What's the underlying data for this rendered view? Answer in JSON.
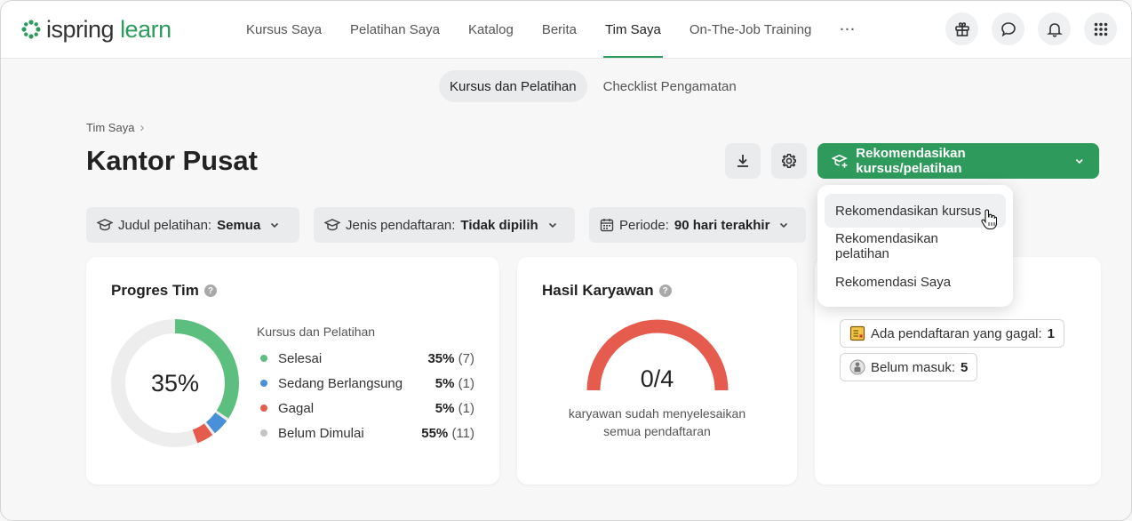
{
  "app": {
    "logo_brand": "ispring",
    "logo_product": "learn"
  },
  "nav": {
    "items": [
      {
        "label": "Kursus Saya"
      },
      {
        "label": "Pelatihan Saya"
      },
      {
        "label": "Katalog"
      },
      {
        "label": "Berita"
      },
      {
        "label": "Tim Saya",
        "active": true
      },
      {
        "label": "On-The-Job Training"
      }
    ],
    "more": "···"
  },
  "subtabs": [
    {
      "label": "Kursus dan Pelatihan",
      "active": true
    },
    {
      "label": "Checklist Pengamatan"
    }
  ],
  "breadcrumb": {
    "item": "Tim Saya",
    "separator": "›"
  },
  "page": {
    "title": "Kantor Pusat"
  },
  "actions": {
    "recommend_label": "Rekomendasikan kursus/pelatihan"
  },
  "filters": [
    {
      "label": "Judul pelatihan:",
      "value": "Semua"
    },
    {
      "label": "Jenis pendaftaran:",
      "value": "Tidak dipilih"
    },
    {
      "label": "Periode:",
      "value": "90 hari terakhir"
    }
  ],
  "progress_card": {
    "title": "Progres Tim",
    "help": "?",
    "center_value": "35%",
    "legend_title": "Kursus dan Pelatihan",
    "items": [
      {
        "label": "Selesai",
        "percent": "35%",
        "count": "(7)",
        "color": "#5cbf7f",
        "fraction": 0.35
      },
      {
        "label": "Sedang Berlangsung",
        "percent": "5%",
        "count": "(1)",
        "color": "#4a90d9",
        "fraction": 0.05
      },
      {
        "label": "Gagal",
        "percent": "5%",
        "count": "(1)",
        "color": "#e55b4d",
        "fraction": 0.05
      },
      {
        "label": "Belum Dimulai",
        "percent": "55%",
        "count": "(11)",
        "color": "#c4c4c4",
        "fraction": 0.55
      }
    ]
  },
  "results_card": {
    "title": "Hasil Karyawan",
    "help": "?",
    "value": "0/4",
    "caption_line1": "karyawan sudah menyelesaikan",
    "caption_line2": "semua pendaftaran",
    "gauge_color": "#e55b4d",
    "completed": 0,
    "total": 4
  },
  "attention_card": {
    "tags": [
      {
        "label": "Ada pendaftaran yang gagal:",
        "value": "1"
      },
      {
        "label": "Belum masuk:",
        "value": "5"
      }
    ]
  },
  "dropdown": {
    "items": [
      {
        "label": "Rekomendasikan kursus",
        "hover": true
      },
      {
        "label": "Rekomendasikan pelatihan"
      },
      {
        "label": "Rekomendasi Saya"
      }
    ]
  },
  "colors": {
    "brand": "#2e9a5c",
    "accent_red": "#e55b4d"
  }
}
